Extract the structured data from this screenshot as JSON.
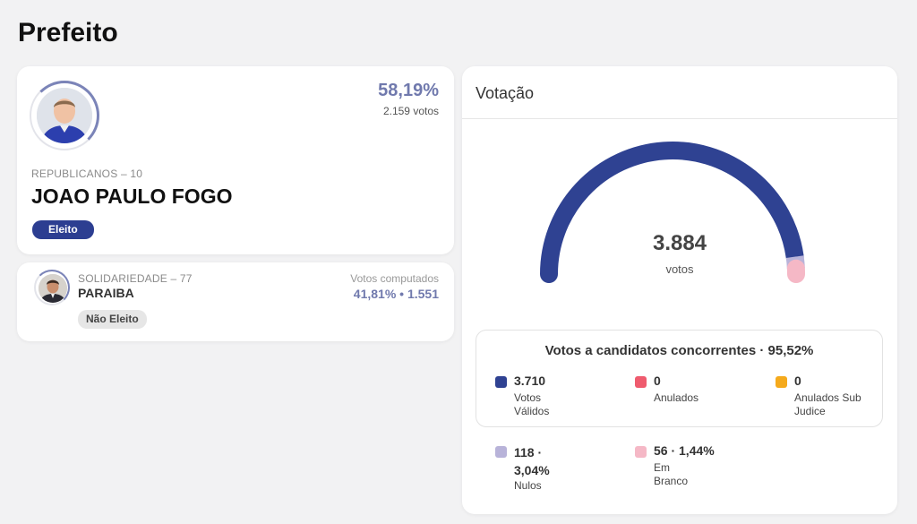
{
  "page": {
    "title": "Prefeito"
  },
  "winner": {
    "party": "REPUBLICANOS – 10",
    "name": "JOAO PAULO FOGO",
    "percent": "58,19%",
    "votes": "2.159 votos",
    "status": "Eleito",
    "colors": {
      "accent": "#7079ad",
      "badge": "#2c3e91"
    }
  },
  "runner_up": {
    "party": "SOLIDARIEDADE – 77",
    "name": "PARAIBA",
    "computed_label": "Votos computados",
    "computed_value": "41,81% • 1.551",
    "status": "Não Eleito"
  },
  "votacao": {
    "title": "Votação",
    "total": "3.884",
    "total_unit": "votos",
    "gauge": {
      "segments": [
        {
          "name": "Votos Válidos",
          "value": 3710,
          "color": "#2f4292"
        },
        {
          "name": "Nulos",
          "value": 118,
          "color": "#b8b3d9"
        },
        {
          "name": "Em Branco",
          "value": 56,
          "color": "#f5b8c6"
        }
      ]
    },
    "concorrentes_title": "Votos a candidatos concorrentes · 95,52%",
    "stats": {
      "validos": {
        "value": "3.710",
        "label": "Votos Válidos",
        "color": "#2f4292"
      },
      "anulados": {
        "value": "0",
        "label": "Anulados",
        "color": "#ef5b6e"
      },
      "sub_judice": {
        "value": "0",
        "label": "Anulados Sub Judice",
        "color": "#f5aa1c"
      },
      "nulos": {
        "value": "118 · 3,04%",
        "label": "Nulos",
        "color": "#b8b3d9"
      },
      "branco": {
        "value": "56 · 1,44%",
        "label": "Em Branco",
        "color": "#f5b8c6"
      }
    }
  }
}
